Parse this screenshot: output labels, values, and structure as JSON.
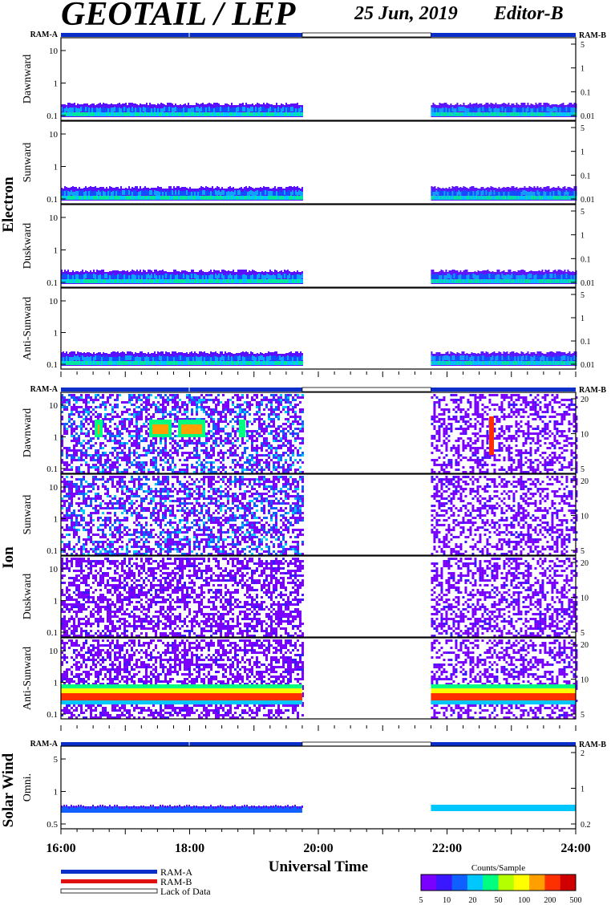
{
  "header": {
    "title": "GEOTAIL / LEP",
    "date": "25 Jun, 2019",
    "editor": "Editor-B"
  },
  "chart_data": {
    "type": "heatmap",
    "x_range": [
      "16:00",
      "24:00"
    ],
    "x_ticks": [
      "16:00",
      "18:00",
      "20:00",
      "22:00",
      "24:00"
    ],
    "x_label": "Universal Time",
    "data_gap": [
      "19:45",
      "21:45"
    ],
    "ram_labels": {
      "left": "RAM-A",
      "right": "RAM-B"
    },
    "groups": [
      {
        "label": "Electron",
        "panels": [
          {
            "label": "Dawnward",
            "left_ticks": [
              "0.1",
              "1",
              "10"
            ],
            "right_ticks": [
              "0.01",
              "0.1",
              "1",
              "5"
            ]
          },
          {
            "label": "Sunward",
            "left_ticks": [
              "0.1",
              "1",
              "10"
            ],
            "right_ticks": [
              "0.01",
              "0.1",
              "1",
              "5"
            ]
          },
          {
            "label": "Duskward",
            "left_ticks": [
              "0.1",
              "1",
              "10"
            ],
            "right_ticks": [
              "0.01",
              "0.1",
              "1",
              "5"
            ]
          },
          {
            "label": "Anti-Sunward",
            "left_ticks": [
              "0.1",
              "1",
              "10"
            ],
            "right_ticks": [
              "0.01",
              "0.1",
              "1",
              "5"
            ]
          }
        ]
      },
      {
        "label": "Ion",
        "panels": [
          {
            "label": "Dawnward",
            "left_ticks": [
              "0.1",
              "1",
              "10"
            ],
            "right_ticks": [
              "5",
              "10",
              "20"
            ]
          },
          {
            "label": "Sunward",
            "left_ticks": [
              "0.1",
              "1",
              "10"
            ],
            "right_ticks": [
              "5",
              "10",
              "20"
            ]
          },
          {
            "label": "Duskward",
            "left_ticks": [
              "0.1",
              "1",
              "10"
            ],
            "right_ticks": [
              "5",
              "10",
              "20"
            ]
          },
          {
            "label": "Anti-Sunward",
            "left_ticks": [
              "0.1",
              "1",
              "10"
            ],
            "right_ticks": [
              "5",
              "10",
              "20"
            ]
          }
        ]
      },
      {
        "label": "Solar Wind",
        "panels": [
          {
            "label": "Omni.",
            "left_ticks": [
              "0.5",
              "1",
              "5"
            ],
            "right_ticks": [
              "0.2",
              "1",
              "2"
            ]
          }
        ]
      }
    ],
    "legend": {
      "ram_a": "RAM-A",
      "ram_b": "RAM-B",
      "lack": "Lack of Data",
      "ram_a_color": "#0a2fc8",
      "ram_b_color": "#e01010"
    },
    "colorbar": {
      "title": "Counts/Sample",
      "ticks": [
        "5",
        "10",
        "20",
        "50",
        "100",
        "200",
        "500"
      ],
      "colors": [
        "#7a00ff",
        "#3a18ff",
        "#1060ff",
        "#00c8ff",
        "#00ff80",
        "#b4ff00",
        "#ffff00",
        "#ffa000",
        "#ff3000",
        "#d00000"
      ]
    }
  }
}
